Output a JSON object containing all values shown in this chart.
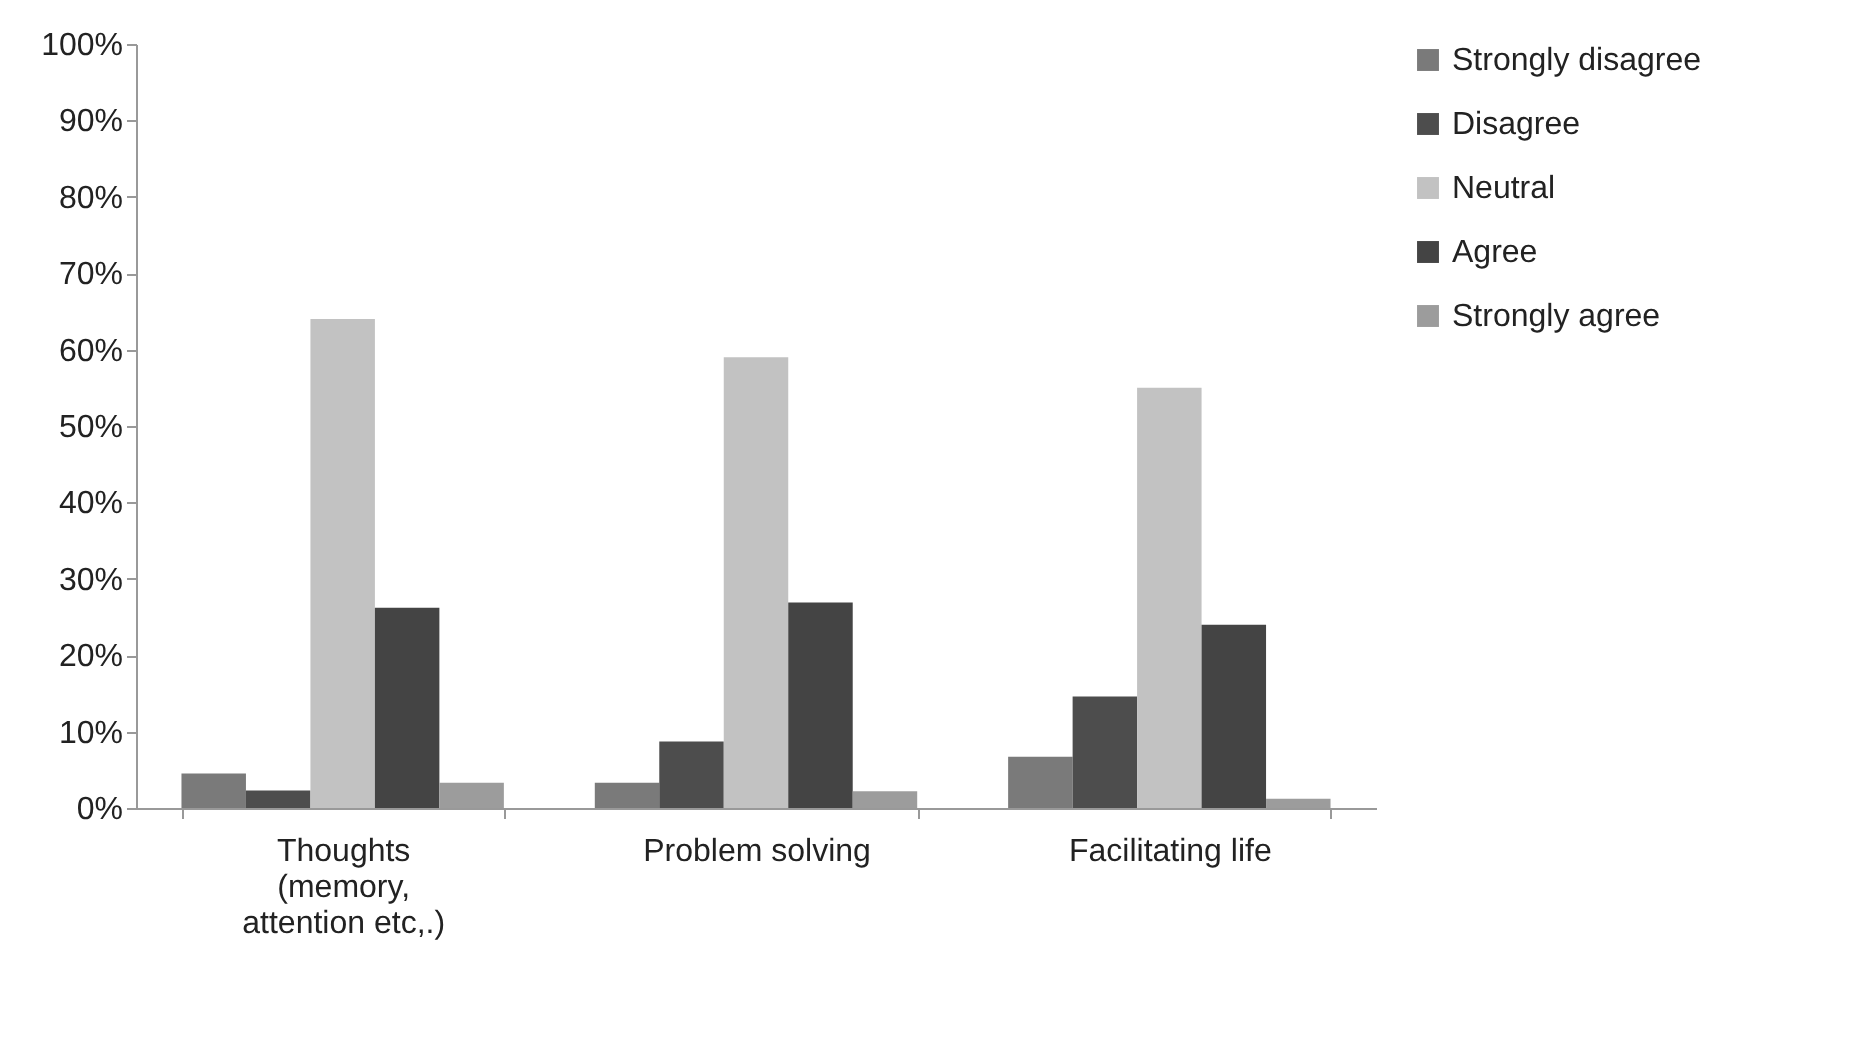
{
  "chart_data": {
    "type": "bar",
    "categories": [
      "Thoughts (memory, attention etc,.)",
      "Problem solving",
      "Facilitating life"
    ],
    "series": [
      {
        "name": "Strongly disagree",
        "color": "#7a7a7a",
        "values": [
          4.5,
          3.3,
          6.7
        ]
      },
      {
        "name": "Disagree",
        "color": "#4d4d4d",
        "values": [
          2.3,
          8.7,
          14.6
        ]
      },
      {
        "name": "Neutral",
        "color": "#c2c2c2",
        "values": [
          64,
          59,
          55
        ]
      },
      {
        "name": "Agree",
        "color": "#444444",
        "values": [
          26.2,
          26.9,
          24
        ]
      },
      {
        "name": "Strongly agree",
        "color": "#9c9c9c",
        "values": [
          3.3,
          2.2,
          1.2
        ]
      }
    ],
    "ylim": [
      0,
      100
    ],
    "yticks": [
      {
        "value": 0,
        "label": "0%"
      },
      {
        "value": 10,
        "label": "10%"
      },
      {
        "value": 20,
        "label": "20%"
      },
      {
        "value": 30,
        "label": "30%"
      },
      {
        "value": 40,
        "label": "40%"
      },
      {
        "value": 50,
        "label": "50%"
      },
      {
        "value": 60,
        "label": "60%"
      },
      {
        "value": 70,
        "label": "70%"
      },
      {
        "value": 80,
        "label": "80%"
      },
      {
        "value": 90,
        "label": "90%"
      },
      {
        "value": 100,
        "label": "100%"
      }
    ],
    "grid": false,
    "legend": "right"
  }
}
